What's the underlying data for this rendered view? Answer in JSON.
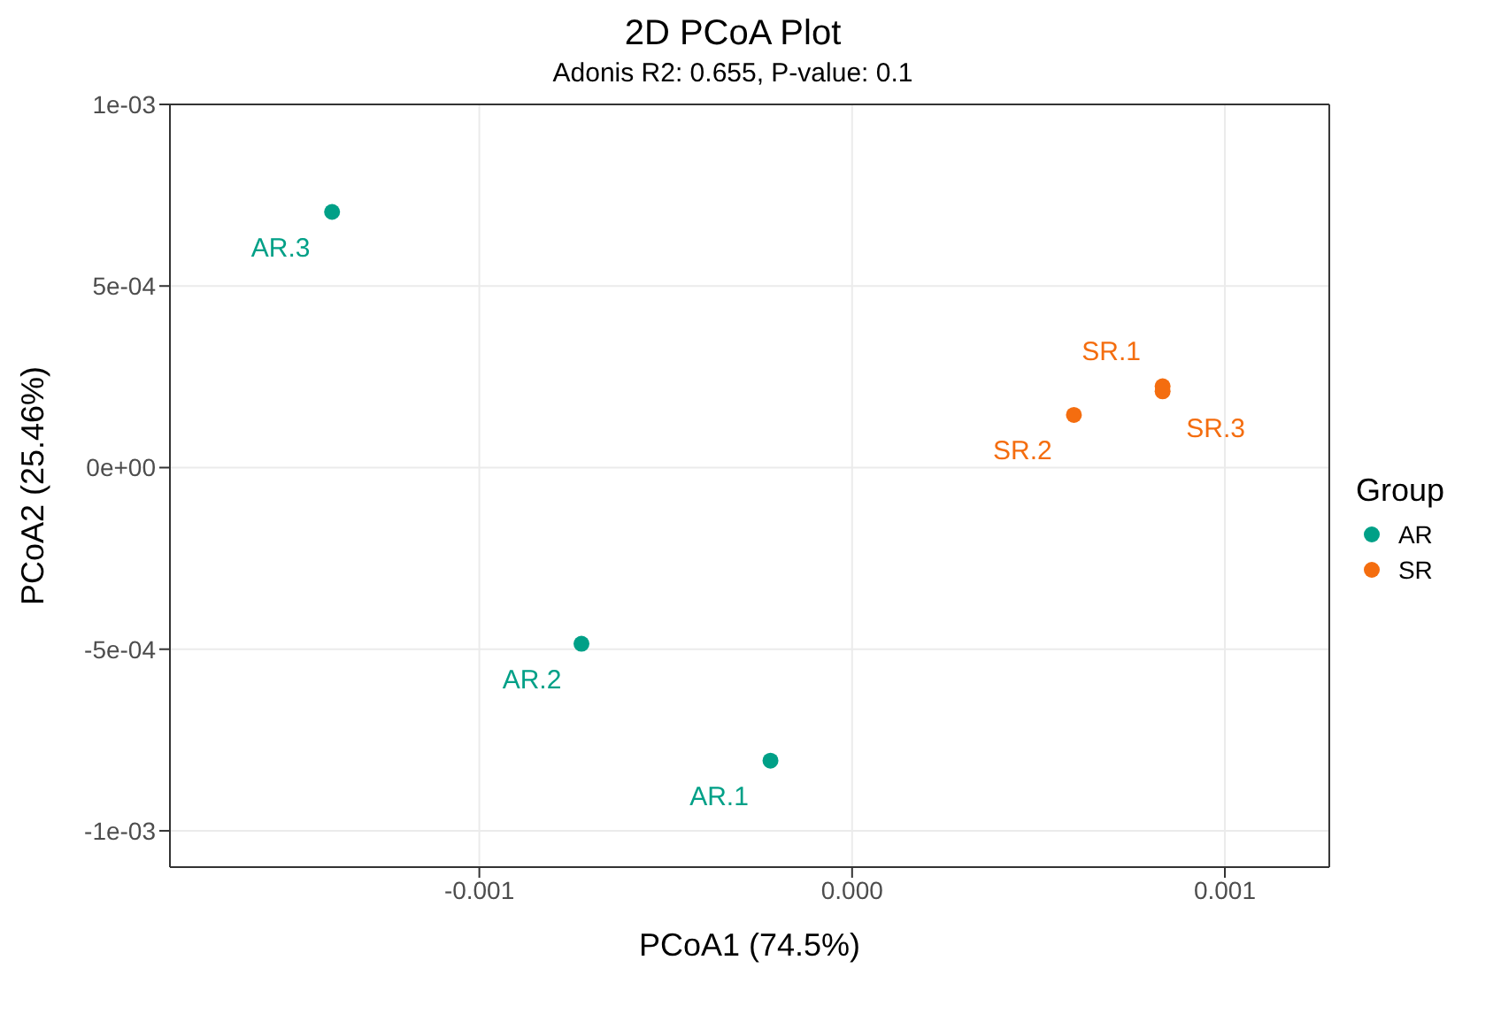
{
  "chart_data": {
    "type": "scatter",
    "title": "2D PCoA Plot",
    "subtitle": "Adonis R2: 0.655, P-value: 0.1",
    "xlabel": "PCoA1 (74.5%)",
    "ylabel": "PCoA2 (25.46%)",
    "legend_title": "Group",
    "series": [
      {
        "name": "AR",
        "color": "#00a087",
        "x": [
          -0.000219,
          -0.000726,
          -0.001395
        ],
        "values": [
          -0.000807,
          -0.000485,
          0.000704
        ]
      },
      {
        "name": "SR",
        "color": "#f46d0f",
        "x": [
          0.000833,
          0.000595,
          0.000833
        ],
        "values": [
          0.000224,
          0.000145,
          0.00021
        ]
      }
    ],
    "annotations": [
      {
        "text": "AR.1",
        "x": -0.000219,
        "y": -0.000807
      },
      {
        "text": "AR.2",
        "x": -0.000726,
        "y": -0.000485
      },
      {
        "text": "AR.3",
        "x": -0.001395,
        "y": 0.000704
      },
      {
        "text": "SR.1",
        "x": 0.000833,
        "y": 0.000224
      },
      {
        "text": "SR.2",
        "x": 0.000595,
        "y": 0.000145
      },
      {
        "text": "SR.3",
        "x": 0.000833,
        "y": 0.00021
      }
    ],
    "xlim": [
      -0.00183,
      0.00128
    ],
    "ylim": [
      -0.0011,
      0.001
    ],
    "xticks": [
      {
        "value": -0.001,
        "label": "-0.001"
      },
      {
        "value": 0,
        "label": "0.000"
      },
      {
        "value": 0.001,
        "label": "0.001"
      }
    ],
    "yticks": [
      {
        "value": -0.001,
        "label": "-1e-03"
      },
      {
        "value": -0.0005,
        "label": "-5e-04"
      },
      {
        "value": 0,
        "label": "0e+00"
      },
      {
        "value": 0.0005,
        "label": "5e-04"
      },
      {
        "value": 0.001,
        "label": "1e-03"
      }
    ],
    "grid": true,
    "legend": "right",
    "marker": "circle"
  }
}
